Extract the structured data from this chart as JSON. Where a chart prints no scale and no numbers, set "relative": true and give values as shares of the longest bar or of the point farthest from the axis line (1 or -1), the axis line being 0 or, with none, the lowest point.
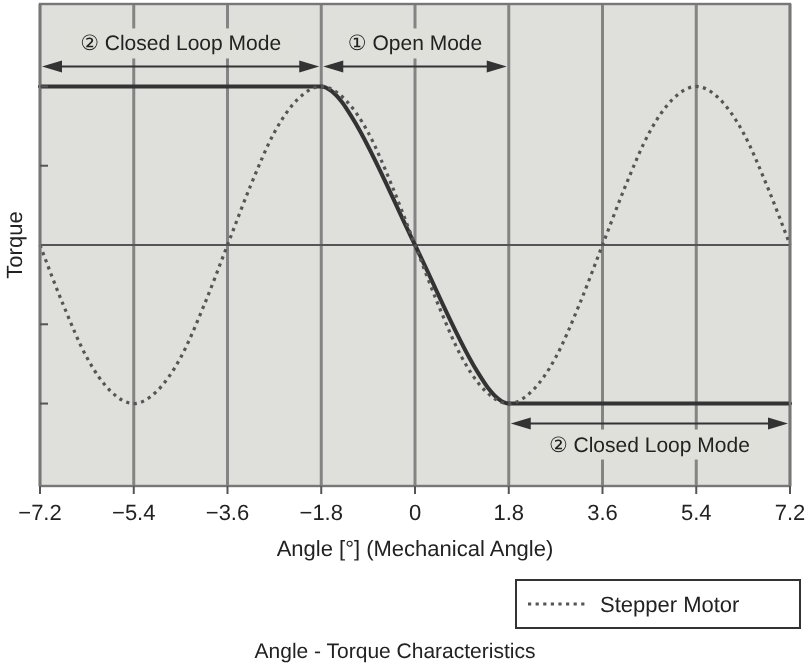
{
  "chart_data": {
    "type": "line",
    "title": "Angle - Torque Characteristics",
    "xlabel": "Angle [°] (Mechanical Angle)",
    "ylabel": "Torque",
    "relative": true,
    "xlim": [
      -7.2,
      7.2
    ],
    "xticks": [
      {
        "value": -7.2,
        "label": "−7.2"
      },
      {
        "value": -5.4,
        "label": "−5.4"
      },
      {
        "value": -3.6,
        "label": "−3.6"
      },
      {
        "value": -1.8,
        "label": "−1.8"
      },
      0,
      1.8,
      3.6,
      5.4,
      7.2
    ],
    "grid": "x",
    "legend": "bottom right",
    "marker": "none",
    "series": [
      {
        "color": "#333333",
        "line_style": "solid",
        "x": [
          -7.2,
          -1.8,
          -1.6,
          -1.4,
          -1.2,
          0,
          1.2,
          1.4,
          1.6,
          1.8,
          7.2
        ],
        "values": [
          1,
          1,
          0.97,
          0.9,
          0.8,
          0,
          -0.8,
          -0.9,
          -0.97,
          -1,
          -1
        ]
      },
      {
        "name": "Stepper Motor",
        "color": "#555555",
        "line_style": "dotted",
        "x": [
          -7.2,
          -6.75,
          -6.3,
          -5.85,
          -5.4,
          -4.95,
          -4.5,
          -4.05,
          -3.6,
          -3.15,
          -2.7,
          -2.25,
          -1.8,
          -1.35,
          -0.9,
          -0.45,
          0,
          0.45,
          0.9,
          1.35,
          1.8,
          2.25,
          2.7,
          3.15,
          3.6,
          4.05,
          4.5,
          4.95,
          5.4,
          5.85,
          6.3,
          6.75,
          7.2
        ],
        "values": [
          0,
          -0.38,
          -0.71,
          -0.92,
          -1,
          -0.92,
          -0.71,
          -0.38,
          0,
          0.38,
          0.71,
          0.92,
          1,
          0.92,
          0.71,
          0.38,
          0,
          -0.38,
          -0.71,
          -0.92,
          -1,
          -0.92,
          -0.71,
          -0.38,
          0,
          0.38,
          0.71,
          0.92,
          1,
          0.92,
          0.71,
          0.38,
          0
        ]
      }
    ],
    "bands": [
      {
        "axis": "x",
        "from": -7.2,
        "to": -1.8,
        "label": "② Closed Loop Mode"
      },
      {
        "axis": "x",
        "from": -1.8,
        "to": 1.8,
        "label": "① Open Mode"
      },
      {
        "axis": "x",
        "from": 1.8,
        "to": 7.2,
        "label": "② Closed Loop Mode"
      }
    ]
  }
}
